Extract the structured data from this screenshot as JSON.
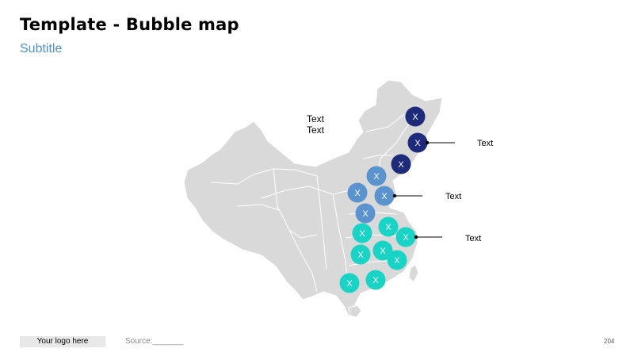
{
  "slide": {
    "title": "Template - Bubble map",
    "subtitle": "Subtitle",
    "page_number": "204"
  },
  "map": {
    "label_line1": "Text",
    "label_line2": "Text",
    "land_color": "#d9d9d9",
    "border_color": "#ffffff",
    "bubbles": [
      {
        "label": "X",
        "group": "dark"
      },
      {
        "label": "X",
        "group": "dark"
      },
      {
        "label": "X",
        "group": "dark"
      },
      {
        "label": "X",
        "group": "medium"
      },
      {
        "label": "X",
        "group": "medium"
      },
      {
        "label": "X",
        "group": "medium"
      },
      {
        "label": "X",
        "group": "medium"
      },
      {
        "label": "X",
        "group": "teal"
      },
      {
        "label": "X",
        "group": "teal"
      },
      {
        "label": "X",
        "group": "teal"
      },
      {
        "label": "X",
        "group": "teal"
      },
      {
        "label": "X",
        "group": "teal"
      },
      {
        "label": "X",
        "group": "teal"
      },
      {
        "label": "X",
        "group": "teal"
      },
      {
        "label": "X",
        "group": "teal"
      }
    ],
    "group_colors": {
      "dark": "#1e2a7a",
      "medium": "#5b93cf",
      "teal": "#19d3c5"
    },
    "callouts": [
      {
        "text": "Text",
        "group": "dark"
      },
      {
        "text": "Text",
        "group": "medium"
      },
      {
        "text": "Text",
        "group": "teal"
      }
    ]
  },
  "footer": {
    "logo_text": "Your logo here",
    "source_label": "Source:_______"
  }
}
